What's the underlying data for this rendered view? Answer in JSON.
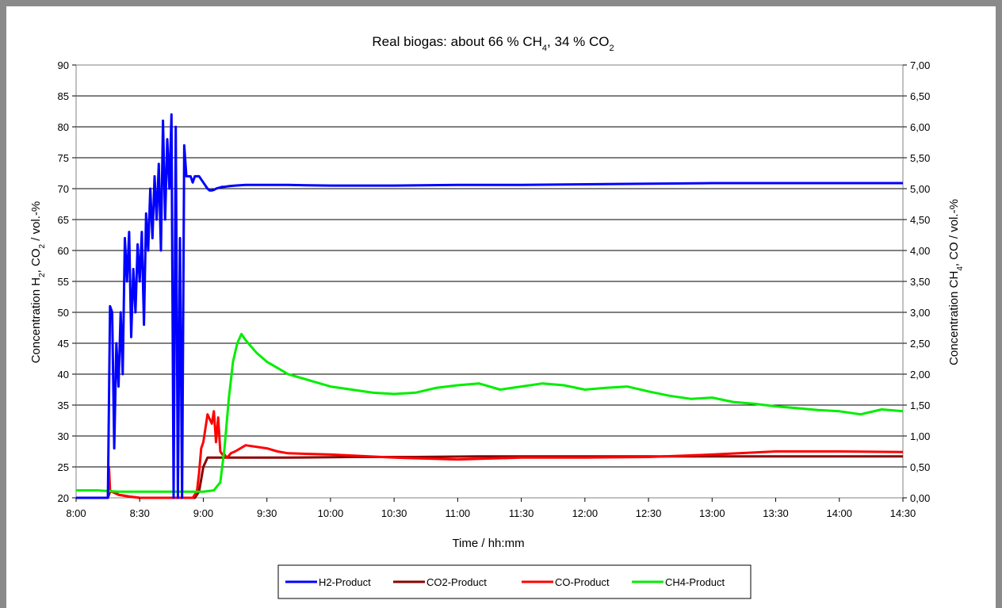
{
  "chart_data": {
    "type": "line",
    "title": "Real biogas: about 66 % CH4, 34 % CO2",
    "title_parts": [
      {
        "text": "Real biogas: about 66 % CH"
      },
      {
        "text": "4",
        "sub": true
      },
      {
        "text": ", 34 % CO"
      },
      {
        "text": "2",
        "sub": true
      }
    ],
    "xlabel": "Time / hh:mm",
    "ylabel_left_parts": [
      {
        "text": "Concentration H"
      },
      {
        "text": "2",
        "sub": true
      },
      {
        "text": ", CO"
      },
      {
        "text": "2",
        "sub": true
      },
      {
        "text": " / vol.-%"
      }
    ],
    "ylabel_right_parts": [
      {
        "text": "Concentration CH"
      },
      {
        "text": "4",
        "sub": true
      },
      {
        "text": ", CO / vol.-%"
      }
    ],
    "x_ticks": [
      "8:00",
      "8:30",
      "9:00",
      "9:30",
      "10:00",
      "10:30",
      "11:00",
      "11:30",
      "12:00",
      "12:30",
      "13:00",
      "13:30",
      "14:00",
      "14:30"
    ],
    "xlim_minutes": [
      0,
      390
    ],
    "y_left_ticks": [
      "20",
      "25",
      "30",
      "35",
      "40",
      "45",
      "50",
      "55",
      "60",
      "65",
      "70",
      "75",
      "80",
      "85",
      "90"
    ],
    "ylim_left": [
      20,
      90
    ],
    "y_right_ticks": [
      "0,00",
      "0,50",
      "1,00",
      "1,50",
      "2,00",
      "2,50",
      "3,00",
      "3,50",
      "4,00",
      "4,50",
      "5,00",
      "5,50",
      "6,00",
      "6,50",
      "7,00"
    ],
    "ylim_right": [
      0,
      7
    ],
    "grid": "horizontal",
    "legend_position": "bottom",
    "series": [
      {
        "name": "H2-Product",
        "axis": "left",
        "color": "#0000ff",
        "x": [
          0,
          15,
          16,
          17,
          18,
          19,
          20,
          21,
          22,
          23,
          24,
          25,
          26,
          27,
          28,
          29,
          30,
          31,
          32,
          33,
          34,
          35,
          36,
          37,
          38,
          39,
          40,
          41,
          42,
          43,
          44,
          45,
          46,
          47,
          48,
          49,
          50,
          51,
          52,
          53,
          54,
          55,
          56,
          57,
          58,
          59,
          60,
          61,
          62,
          63,
          64,
          65,
          66,
          67,
          68,
          69,
          70,
          72,
          75,
          80,
          90,
          100,
          120,
          150,
          180,
          210,
          240,
          270,
          300,
          330,
          360,
          390
        ],
        "y": [
          20,
          20,
          51,
          50,
          28,
          45,
          38,
          50,
          40,
          62,
          55,
          63,
          46,
          57,
          50,
          61,
          55,
          63,
          48,
          66,
          60,
          70,
          62,
          72,
          65,
          74,
          60,
          81,
          65,
          78,
          70,
          82,
          20,
          80,
          20,
          62,
          20,
          77,
          72,
          72,
          72,
          71,
          72,
          72,
          72,
          71.5,
          71,
          70.5,
          70,
          69.7,
          69.7,
          69.8,
          70,
          70.1,
          70.2,
          70.3,
          70.3,
          70.4,
          70.5,
          70.6,
          70.6,
          70.6,
          70.5,
          70.5,
          70.6,
          70.6,
          70.7,
          70.8,
          70.9,
          70.9,
          70.9,
          70.9
        ]
      },
      {
        "name": "CO2-Product",
        "axis": "left",
        "color": "#8b0000",
        "x": [
          0,
          15,
          16,
          18,
          20,
          25,
          30,
          40,
          50,
          56,
          58,
          60,
          62,
          64,
          66,
          70,
          80,
          100,
          130,
          160,
          190,
          220,
          250,
          280,
          310,
          340,
          370,
          390
        ],
        "y": [
          20,
          20,
          21,
          21,
          20.5,
          20.2,
          20,
          20,
          20,
          20,
          21,
          25,
          26.5,
          26.5,
          26.5,
          26.5,
          26.5,
          26.5,
          26.6,
          26.6,
          26.7,
          26.7,
          26.7,
          26.7,
          26.7,
          26.7,
          26.7,
          26.7
        ]
      },
      {
        "name": "CO-Product",
        "axis": "right",
        "color": "#ff0000",
        "x": [
          0,
          15,
          15.5,
          16,
          17,
          18,
          20,
          25,
          30,
          40,
          50,
          55,
          57,
          58,
          59,
          60,
          62,
          64,
          65,
          66,
          67,
          68,
          69,
          70,
          71,
          72,
          73,
          75,
          80,
          90,
          95,
          100,
          120,
          150,
          180,
          210,
          240,
          270,
          300,
          330,
          360,
          390
        ],
        "y": [
          0,
          0,
          0.5,
          0.12,
          0.1,
          0.08,
          0.05,
          0.02,
          0,
          0,
          0,
          0,
          0.1,
          0.4,
          0.8,
          0.9,
          1.35,
          1.2,
          1.4,
          0.9,
          1.3,
          0.75,
          0.7,
          0.7,
          0.65,
          0.68,
          0.72,
          0.75,
          0.85,
          0.8,
          0.75,
          0.72,
          0.7,
          0.65,
          0.62,
          0.65,
          0.65,
          0.66,
          0.7,
          0.75,
          0.75,
          0.74
        ]
      },
      {
        "name": "CH4-Product",
        "axis": "right",
        "color": "#00ee00",
        "x": [
          0,
          10,
          20,
          30,
          40,
          50,
          55,
          60,
          65,
          68,
          70,
          72,
          74,
          76,
          78,
          80,
          85,
          90,
          95,
          100,
          110,
          120,
          130,
          140,
          150,
          160,
          170,
          180,
          190,
          200,
          210,
          220,
          230,
          240,
          250,
          260,
          270,
          280,
          290,
          300,
          310,
          320,
          330,
          340,
          350,
          360,
          370,
          380,
          390
        ],
        "y": [
          0.12,
          0.12,
          0.1,
          0.1,
          0.1,
          0.1,
          0.1,
          0.1,
          0.12,
          0.25,
          0.8,
          1.6,
          2.2,
          2.5,
          2.65,
          2.55,
          2.35,
          2.2,
          2.1,
          2.0,
          1.9,
          1.8,
          1.75,
          1.7,
          1.68,
          1.7,
          1.78,
          1.82,
          1.85,
          1.75,
          1.8,
          1.85,
          1.82,
          1.75,
          1.78,
          1.8,
          1.72,
          1.65,
          1.6,
          1.62,
          1.55,
          1.52,
          1.48,
          1.45,
          1.42,
          1.4,
          1.35,
          1.43,
          1.4
        ]
      }
    ]
  }
}
